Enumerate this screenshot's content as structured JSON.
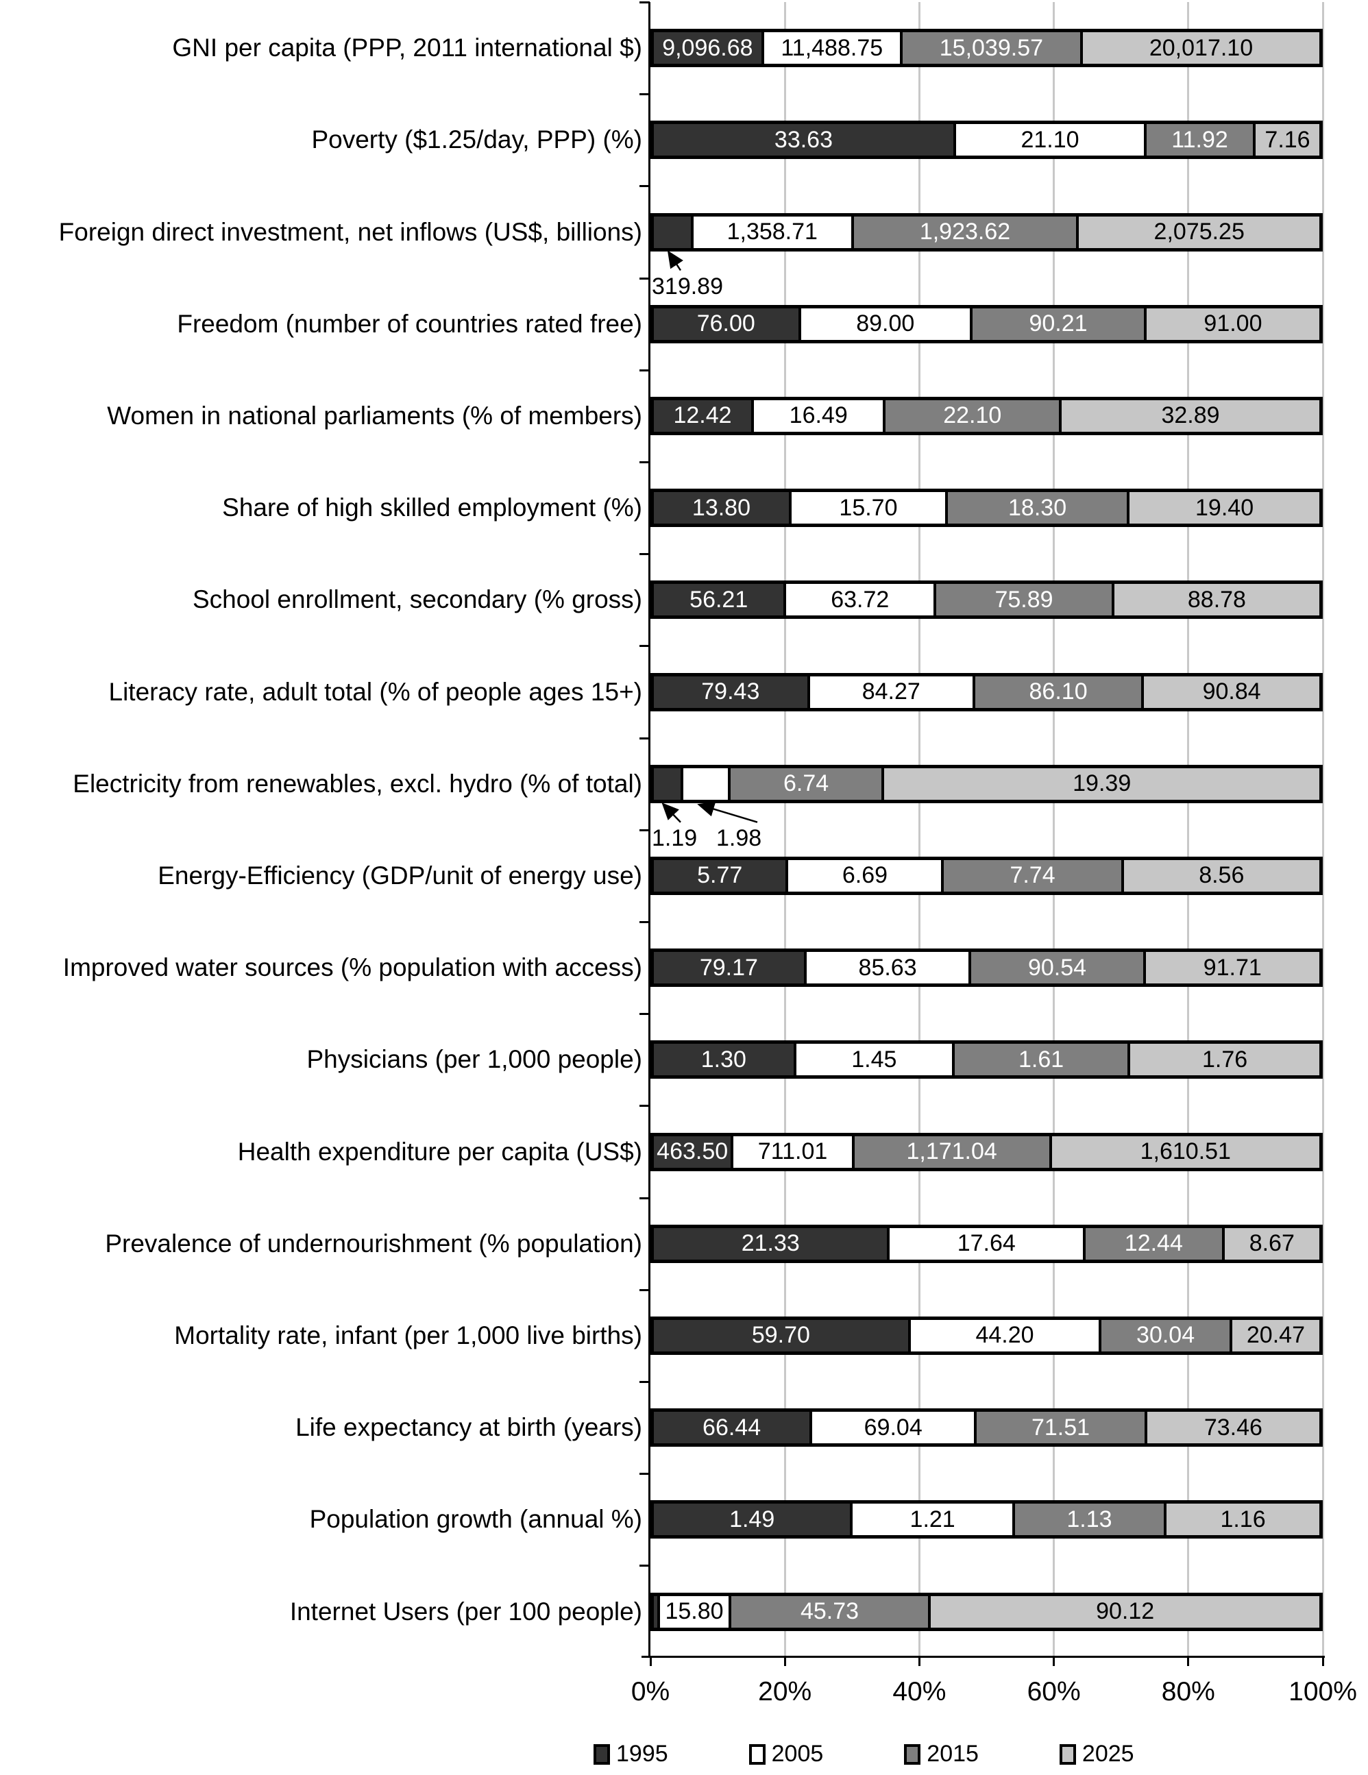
{
  "chart_data": {
    "type": "bar",
    "variant": "100%-stacked-horizontal",
    "title": "",
    "series_names": [
      "1995",
      "2005",
      "2015",
      "2025"
    ],
    "colors": {
      "1995": "#333333",
      "2005": "#ffffff",
      "2015": "#7f7f7f",
      "2025": "#c6c6c6"
    },
    "value_label_colors": [
      "#ffffff",
      "#000000",
      "#ffffff",
      "#000000"
    ],
    "grid": true,
    "x_axis": {
      "range_percent": [
        0,
        100
      ],
      "tick_labels": [
        "0%",
        "20%",
        "40%",
        "60%",
        "80%",
        "100%"
      ]
    },
    "legend": {
      "position": "bottom",
      "entries": [
        "1995",
        "2005",
        "2015",
        "2025"
      ]
    },
    "rows": [
      {
        "category": "GNI per capita (PPP, 2011 international $)",
        "values": [
          9096.68,
          11488.75,
          15039.57,
          20017.1
        ],
        "labels": [
          "9,096.68",
          "11,488.75",
          "15,039.57",
          "20,017.10"
        ]
      },
      {
        "category": "Poverty ($1.25/day, PPP) (%)",
        "values": [
          33.63,
          21.1,
          11.92,
          7.16
        ],
        "labels": [
          "33.63",
          "21.10",
          "11.92",
          "7.16"
        ]
      },
      {
        "category": "Foreign direct investment, net inflows (US$, billions)",
        "values": [
          319.89,
          1358.71,
          1923.62,
          2075.25
        ],
        "labels": [
          "319.89",
          "1,358.71",
          "1,923.62",
          "2,075.25"
        ],
        "callout_series": [
          0
        ]
      },
      {
        "category": "Freedom (number of countries rated free)",
        "values": [
          76.0,
          89.0,
          90.21,
          91.0
        ],
        "labels": [
          "76.00",
          "89.00",
          "90.21",
          "91.00"
        ]
      },
      {
        "category": "Women in national parliaments (% of members)",
        "values": [
          12.42,
          16.49,
          22.1,
          32.89
        ],
        "labels": [
          "12.42",
          "16.49",
          "22.10",
          "32.89"
        ]
      },
      {
        "category": "Share of high skilled employment  (%)",
        "values": [
          13.8,
          15.7,
          18.3,
          19.4
        ],
        "labels": [
          "13.80",
          "15.70",
          "18.30",
          "19.40"
        ]
      },
      {
        "category": "School enrollment, secondary (% gross)",
        "values": [
          56.21,
          63.72,
          75.89,
          88.78
        ],
        "labels": [
          "56.21",
          "63.72",
          "75.89",
          "88.78"
        ]
      },
      {
        "category": "Literacy rate, adult total (% of people ages 15+)",
        "values": [
          79.43,
          84.27,
          86.1,
          90.84
        ],
        "labels": [
          "79.43",
          "84.27",
          "86.10",
          "90.84"
        ]
      },
      {
        "category": "Electricity from renewables, excl. hydro (% of total)",
        "values": [
          1.19,
          1.98,
          6.74,
          19.39
        ],
        "labels": [
          "1.19",
          "1.98",
          "6.74",
          "19.39"
        ],
        "callout_series": [
          0,
          1
        ]
      },
      {
        "category": "Energy-Efficiency (GDP/unit of energy use)",
        "values": [
          5.77,
          6.69,
          7.74,
          8.56
        ],
        "labels": [
          "5.77",
          "6.69",
          "7.74",
          "8.56"
        ]
      },
      {
        "category": "Improved water sources (% population with access)",
        "values": [
          79.17,
          85.63,
          90.54,
          91.71
        ],
        "labels": [
          "79.17",
          "85.63",
          "90.54",
          "91.71"
        ]
      },
      {
        "category": "Physicians (per 1,000 people)",
        "values": [
          1.3,
          1.45,
          1.61,
          1.76
        ],
        "labels": [
          "1.30",
          "1.45",
          "1.61",
          "1.76"
        ]
      },
      {
        "category": "Health expenditure per capita (US$)",
        "values": [
          463.5,
          711.01,
          1171.04,
          1610.51
        ],
        "labels": [
          "463.50",
          "711.01",
          "1,171.04",
          "1,610.51"
        ]
      },
      {
        "category": "Prevalence of undernourishment (% population)",
        "values": [
          21.33,
          17.64,
          12.44,
          8.67
        ],
        "labels": [
          "21.33",
          "17.64",
          "12.44",
          "8.67"
        ]
      },
      {
        "category": "Mortality rate, infant (per 1,000 live births)",
        "values": [
          59.7,
          44.2,
          30.04,
          20.47
        ],
        "labels": [
          "59.70",
          "44.20",
          "30.04",
          "20.47"
        ]
      },
      {
        "category": "Life expectancy at birth (years)",
        "values": [
          66.44,
          69.04,
          71.51,
          73.46
        ],
        "labels": [
          "66.44",
          "69.04",
          "71.51",
          "73.46"
        ]
      },
      {
        "category": "Population growth (annual %)",
        "values": [
          1.49,
          1.21,
          1.13,
          1.16
        ],
        "labels": [
          "1.49",
          "1.21",
          "1.13",
          "1.16"
        ]
      },
      {
        "category": "Internet Users (per 100 people)",
        "values": [
          0.85,
          15.8,
          45.73,
          90.12
        ],
        "labels": [
          "",
          "15.80",
          "45.73",
          "90.12"
        ]
      }
    ]
  }
}
